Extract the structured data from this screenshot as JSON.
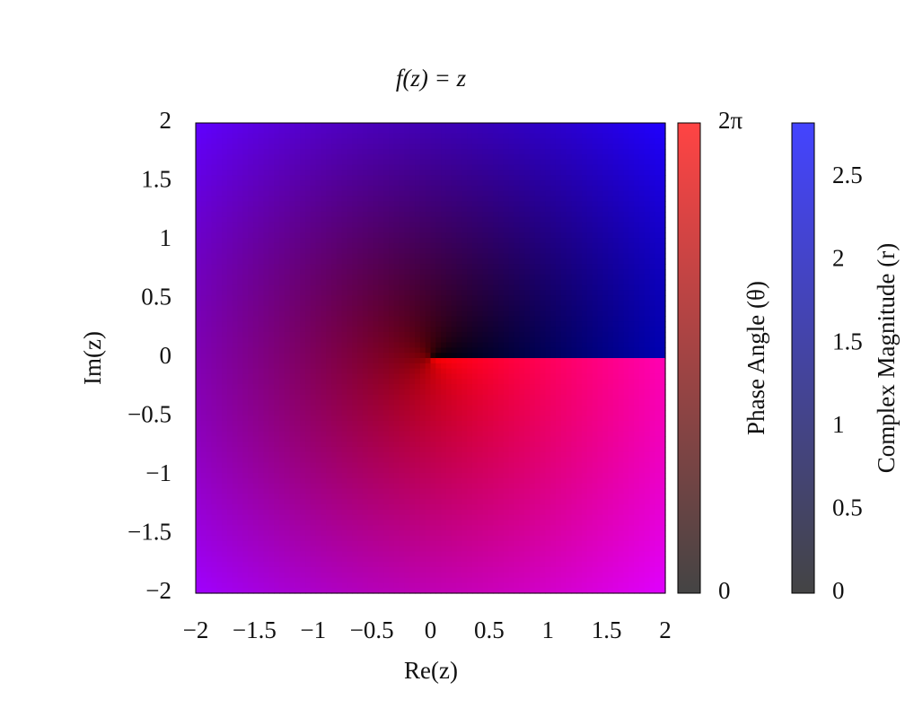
{
  "chart_data": {
    "type": "heatmap",
    "title": "f(z) = z",
    "xlabel": "Re(z)",
    "ylabel": "Im(z)",
    "xlim": [
      -2,
      2
    ],
    "ylim": [
      -2,
      2
    ],
    "xticks": [
      {
        "value": -2,
        "label": "−2"
      },
      {
        "value": -1.5,
        "label": "−1.5"
      },
      {
        "value": -1,
        "label": "−1"
      },
      {
        "value": -0.5,
        "label": "−0.5"
      },
      0,
      0.5,
      1,
      1.5,
      2
    ],
    "yticks": [
      {
        "value": -2,
        "label": "−2"
      },
      {
        "value": -1.5,
        "label": "−1.5"
      },
      {
        "value": -1,
        "label": "−1"
      },
      {
        "value": -0.5,
        "label": "−0.5"
      },
      0,
      0.5,
      1,
      1.5,
      2
    ],
    "colorbars": [
      {
        "label": "Phase Angle (θ)",
        "lim": [
          0,
          6.283185307179586
        ],
        "ticks": [
          0,
          {
            "value": 6.283185307179586,
            "label": "2π"
          }
        ],
        "colors": [
          "#444444",
          "#ff4444"
        ]
      },
      {
        "label": "Complex Magnitude (r)",
        "lim": [
          0,
          2.8284271247461903
        ],
        "ticks": [
          0,
          0.5,
          1,
          1.5,
          2,
          2.5
        ],
        "colors": [
          "#444444",
          "#4444ff"
        ]
      }
    ]
  }
}
